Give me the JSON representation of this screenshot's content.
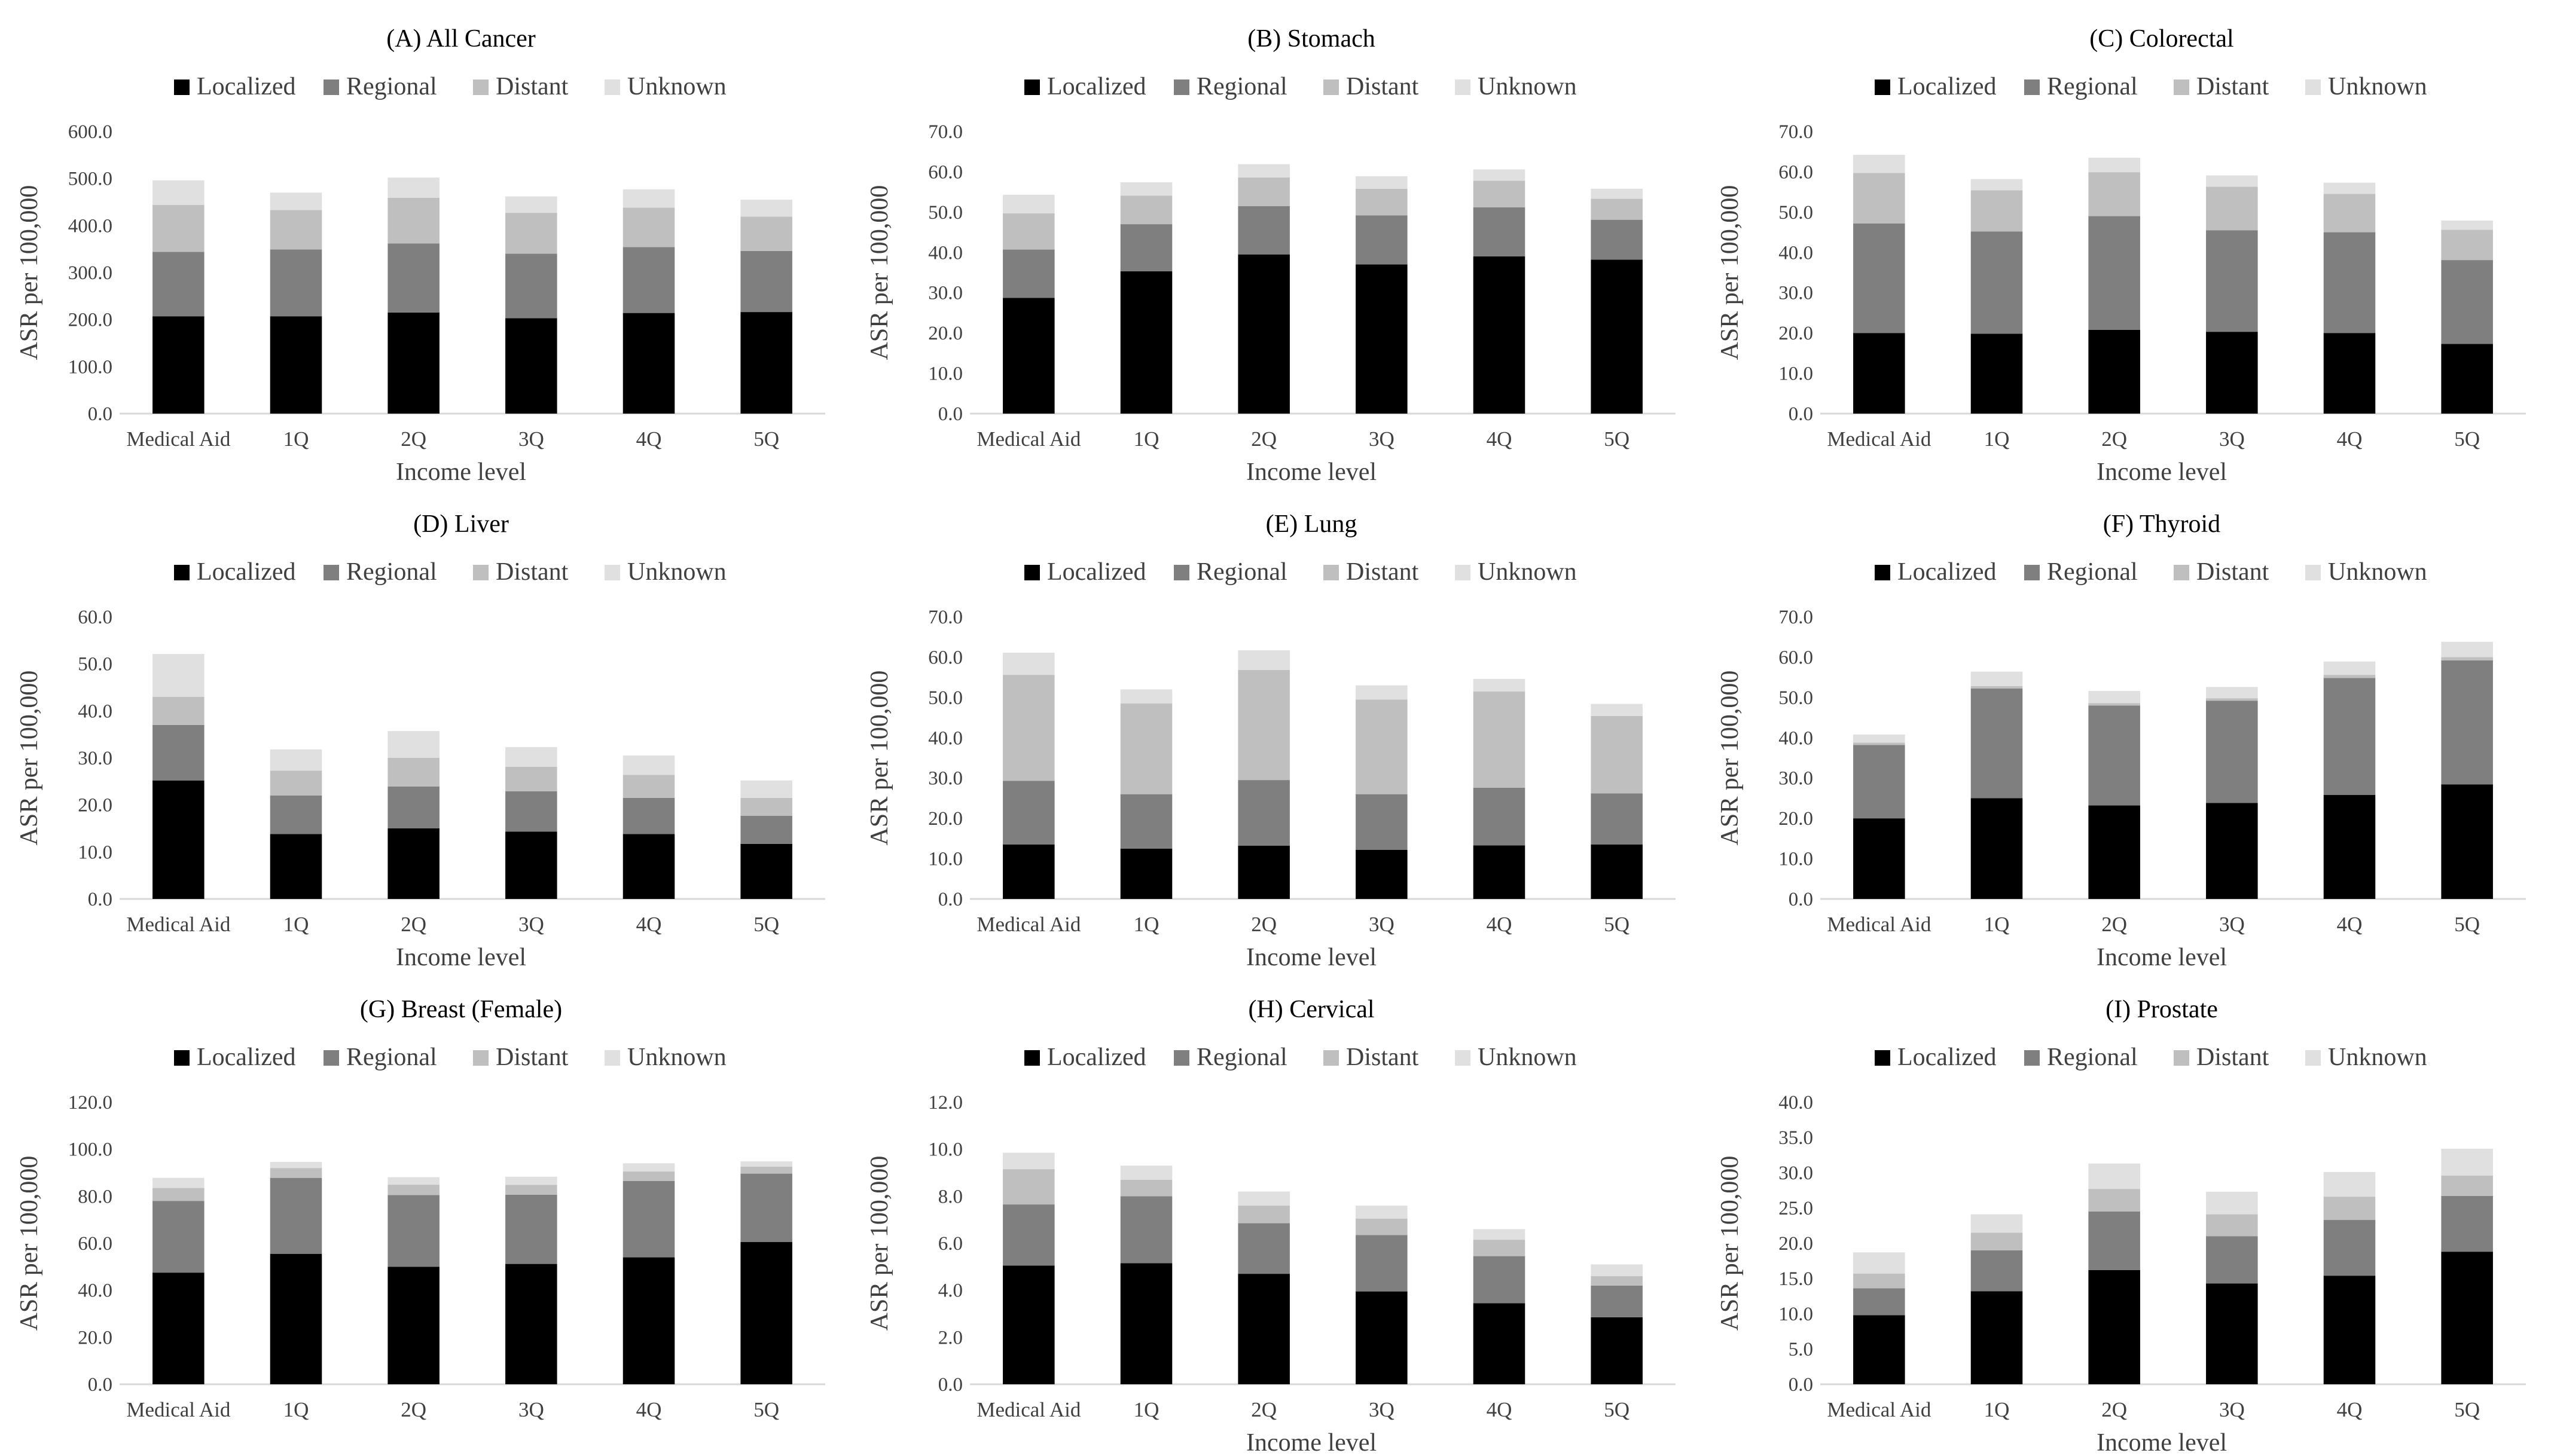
{
  "figure": {
    "xlabel": "Income level",
    "ylabel": "ASR per 100,000"
  },
  "legend": [
    "Localized",
    "Regional",
    "Distant",
    "Unknown"
  ],
  "colors": {
    "Localized": "#000000",
    "Regional": "#7f7f7f",
    "Distant": "#bfbfbf",
    "Unknown": "#e0e0e0"
  },
  "chart_data": [
    {
      "type": "bar",
      "stacked": true,
      "title": "(A) All Cancer",
      "categories": [
        "Medical Aid",
        "1Q",
        "2Q",
        "3Q",
        "4Q",
        "5Q"
      ],
      "xlabel": "Income level",
      "ylabel": "ASR per 100,000",
      "ylim": [
        0,
        600
      ],
      "yticks": [
        "0.0",
        "100.0",
        "200.0",
        "300.0",
        "400.0",
        "500.0",
        "600.0"
      ],
      "series": [
        {
          "name": "Localized",
          "values": [
            207,
            207,
            215,
            203,
            214,
            216
          ]
        },
        {
          "name": "Regional",
          "values": [
            137,
            142,
            147,
            137,
            140,
            130
          ]
        },
        {
          "name": "Distant",
          "values": [
            100,
            84,
            97,
            87,
            84,
            73
          ]
        },
        {
          "name": "Unknown",
          "values": [
            52,
            37,
            43,
            35,
            39,
            36
          ]
        }
      ]
    },
    {
      "type": "bar",
      "stacked": true,
      "title": "(B) Stomach",
      "categories": [
        "Medical Aid",
        "1Q",
        "2Q",
        "3Q",
        "4Q",
        "5Q"
      ],
      "xlabel": "Income level",
      "ylabel": "ASR per 100,000",
      "ylim": [
        0,
        70
      ],
      "yticks": [
        "0.0",
        "10.0",
        "20.0",
        "30.0",
        "40.0",
        "50.0",
        "60.0",
        "70.0"
      ],
      "series": [
        {
          "name": "Localized",
          "values": [
            28.7,
            35.3,
            39.5,
            37,
            39,
            38.2
          ]
        },
        {
          "name": "Regional",
          "values": [
            12,
            11.7,
            12,
            12.2,
            12.2,
            9.9
          ]
        },
        {
          "name": "Distant",
          "values": [
            9,
            7.1,
            7.1,
            6.6,
            6.6,
            5.2
          ]
        },
        {
          "name": "Unknown",
          "values": [
            4.6,
            3.3,
            3.3,
            3.1,
            2.8,
            2.5
          ]
        }
      ]
    },
    {
      "type": "bar",
      "stacked": true,
      "title": "(C) Colorectal",
      "categories": [
        "Medical Aid",
        "1Q",
        "2Q",
        "3Q",
        "4Q",
        "5Q"
      ],
      "xlabel": "Income level",
      "ylabel": "ASR per 100,000",
      "ylim": [
        0,
        70
      ],
      "yticks": [
        "0.0",
        "10.0",
        "20.0",
        "30.0",
        "40.0",
        "50.0",
        "60.0",
        "70.0"
      ],
      "series": [
        {
          "name": "Localized",
          "values": [
            20,
            19.8,
            20.8,
            20.3,
            20,
            17.3
          ]
        },
        {
          "name": "Regional",
          "values": [
            27.2,
            25.4,
            28.2,
            25.2,
            25,
            20.8
          ]
        },
        {
          "name": "Distant",
          "values": [
            12.5,
            10.2,
            10.9,
            10.8,
            9.5,
            7.5
          ]
        },
        {
          "name": "Unknown",
          "values": [
            4.5,
            2.8,
            3.6,
            2.8,
            2.8,
            2.3
          ]
        }
      ]
    },
    {
      "type": "bar",
      "stacked": true,
      "title": "(D) Liver",
      "categories": [
        "Medical Aid",
        "1Q",
        "2Q",
        "3Q",
        "4Q",
        "5Q"
      ],
      "xlabel": "Income level",
      "ylabel": "ASR per 100,000",
      "ylim": [
        0,
        60
      ],
      "yticks": [
        "0.0",
        "10.0",
        "20.0",
        "30.0",
        "40.0",
        "50.0",
        "60.0"
      ],
      "series": [
        {
          "name": "Localized",
          "values": [
            25.2,
            13.8,
            15,
            14.3,
            13.8,
            11.7
          ]
        },
        {
          "name": "Regional",
          "values": [
            11.8,
            8.2,
            8.9,
            8.6,
            7.7,
            6
          ]
        },
        {
          "name": "Distant",
          "values": [
            6,
            5.3,
            6.1,
            5.2,
            4.9,
            3.8
          ]
        },
        {
          "name": "Unknown",
          "values": [
            9.1,
            4.5,
            5.7,
            4.2,
            4.1,
            3.7
          ]
        }
      ]
    },
    {
      "type": "bar",
      "stacked": true,
      "title": "(E) Lung",
      "categories": [
        "Medical Aid",
        "1Q",
        "2Q",
        "3Q",
        "4Q",
        "5Q"
      ],
      "xlabel": "Income level",
      "ylabel": "ASR per 100,000",
      "ylim": [
        0,
        70
      ],
      "yticks": [
        "0.0",
        "10.0",
        "20.0",
        "30.0",
        "40.0",
        "50.0",
        "60.0",
        "70.0"
      ],
      "series": [
        {
          "name": "Localized",
          "values": [
            13.5,
            12.5,
            13.2,
            12.2,
            13.3,
            13.5
          ]
        },
        {
          "name": "Regional",
          "values": [
            15.8,
            13.5,
            16.3,
            13.8,
            14.3,
            12.7
          ]
        },
        {
          "name": "Distant",
          "values": [
            26.3,
            22.5,
            27.3,
            23.5,
            23.9,
            19.2
          ]
        },
        {
          "name": "Unknown",
          "values": [
            5.5,
            3.5,
            4.9,
            3.5,
            3.1,
            3
          ]
        }
      ]
    },
    {
      "type": "bar",
      "stacked": true,
      "title": "(F) Thyroid",
      "categories": [
        "Medical Aid",
        "1Q",
        "2Q",
        "3Q",
        "4Q",
        "5Q"
      ],
      "xlabel": "Income level",
      "ylabel": "ASR per 100,000",
      "ylim": [
        0,
        70
      ],
      "yticks": [
        "0.0",
        "10.0",
        "20.0",
        "30.0",
        "40.0",
        "50.0",
        "60.0",
        "70.0"
      ],
      "series": [
        {
          "name": "Localized",
          "values": [
            20,
            25,
            23.2,
            23.8,
            25.8,
            28.4
          ]
        },
        {
          "name": "Regional",
          "values": [
            18.2,
            27.2,
            24.8,
            25.4,
            29,
            30.8
          ]
        },
        {
          "name": "Distant",
          "values": [
            0.6,
            0.6,
            0.6,
            0.6,
            0.8,
            0.8
          ]
        },
        {
          "name": "Unknown",
          "values": [
            2,
            3.6,
            3,
            2.8,
            3.3,
            3.8
          ]
        }
      ]
    },
    {
      "type": "bar",
      "stacked": true,
      "title": "(G) Breast (Female)",
      "categories": [
        "Medical Aid",
        "1Q",
        "2Q",
        "3Q",
        "4Q",
        "5Q"
      ],
      "xlabel": "",
      "ylabel": "ASR per 100,000",
      "ylim": [
        0,
        120
      ],
      "yticks": [
        "0.0",
        "20.0",
        "40.0",
        "60.0",
        "80.0",
        "100.0",
        "120.0"
      ],
      "series": [
        {
          "name": "Localized",
          "values": [
            47.5,
            55.5,
            50,
            51.2,
            54,
            60.5
          ]
        },
        {
          "name": "Regional",
          "values": [
            30.5,
            32.3,
            30.5,
            29.4,
            32.5,
            29.1
          ]
        },
        {
          "name": "Distant",
          "values": [
            5.5,
            4.2,
            4.4,
            4.2,
            4,
            3
          ]
        },
        {
          "name": "Unknown",
          "values": [
            4.3,
            2.6,
            3.2,
            3.5,
            3.5,
            2.2
          ]
        }
      ]
    },
    {
      "type": "bar",
      "stacked": true,
      "title": "(H) Cervical",
      "categories": [
        "Medical Aid",
        "1Q",
        "2Q",
        "3Q",
        "4Q",
        "5Q"
      ],
      "xlabel": "Income level",
      "ylabel": "ASR per 100,000",
      "ylim": [
        0,
        12
      ],
      "yticks": [
        "0.0",
        "2.0",
        "4.0",
        "6.0",
        "8.0",
        "10.0",
        "12.0"
      ],
      "series": [
        {
          "name": "Localized",
          "values": [
            5.05,
            5.15,
            4.7,
            3.95,
            3.45,
            2.85
          ]
        },
        {
          "name": "Regional",
          "values": [
            2.6,
            2.85,
            2.15,
            2.4,
            2,
            1.35
          ]
        },
        {
          "name": "Distant",
          "values": [
            1.5,
            0.7,
            0.75,
            0.7,
            0.7,
            0.4
          ]
        },
        {
          "name": "Unknown",
          "values": [
            0.7,
            0.6,
            0.6,
            0.55,
            0.45,
            0.5
          ]
        }
      ]
    },
    {
      "type": "bar",
      "stacked": true,
      "title": "(I) Prostate",
      "categories": [
        "Medical Aid",
        "1Q",
        "2Q",
        "3Q",
        "4Q",
        "5Q"
      ],
      "xlabel": "Income level",
      "ylabel": "ASR per 100,000",
      "ylim": [
        0,
        40
      ],
      "yticks": [
        "0.0",
        "5.0",
        "10.0",
        "15.0",
        "20.0",
        "25.0",
        "30.0",
        "35.0",
        "40.0"
      ],
      "series": [
        {
          "name": "Localized",
          "values": [
            9.8,
            13.2,
            16.2,
            14.3,
            15.4,
            18.8
          ]
        },
        {
          "name": "Regional",
          "values": [
            3.8,
            5.8,
            8.3,
            6.7,
            7.9,
            7.9
          ]
        },
        {
          "name": "Distant",
          "values": [
            2.1,
            2.5,
            3.2,
            3.1,
            3.3,
            2.9
          ]
        },
        {
          "name": "Unknown",
          "values": [
            3,
            2.6,
            3.6,
            3.2,
            3.5,
            3.8
          ]
        }
      ]
    }
  ]
}
